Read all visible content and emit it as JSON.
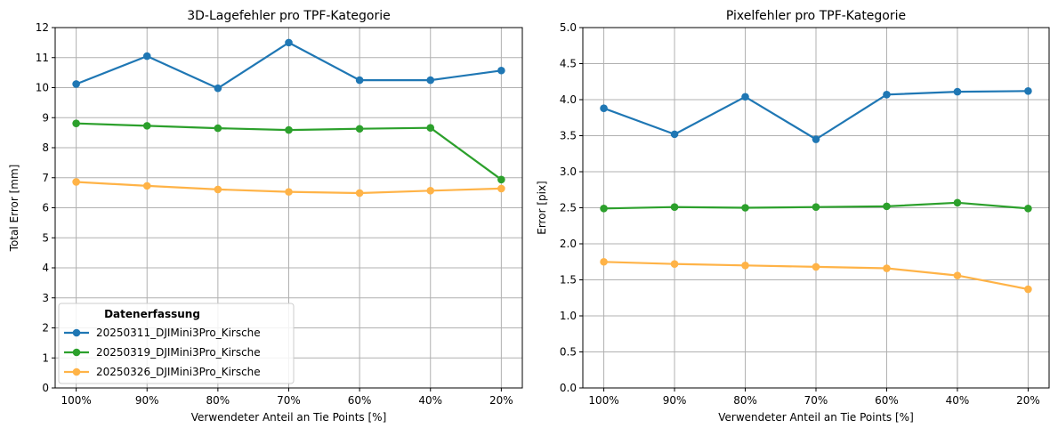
{
  "chart_data": [
    {
      "type": "line",
      "title": "3D-Lagefehler pro TPF-Kategorie",
      "xlabel": "Verwendeter Anteil an Tie Points [%]",
      "ylabel": "Total Error [mm]",
      "categories": [
        "100%",
        "90%",
        "80%",
        "70%",
        "60%",
        "40%",
        "20%"
      ],
      "ylim": [
        0,
        12
      ],
      "yticks": [
        "0",
        "1",
        "2",
        "3",
        "4",
        "5",
        "6",
        "7",
        "8",
        "9",
        "10",
        "11",
        "12"
      ],
      "grid": true,
      "legend": {
        "title": "Datenerfassung",
        "placement": "bottom-left"
      },
      "series": [
        {
          "name": "20250311_DJIMini3Pro_Kirsche",
          "color": "#1f77b4",
          "values": [
            10.12,
            11.05,
            9.98,
            11.5,
            10.25,
            10.25,
            10.57
          ]
        },
        {
          "name": "20250319_DJIMini3Pro_Kirsche",
          "color": "#2ca02c",
          "values": [
            8.81,
            8.73,
            8.65,
            8.59,
            8.63,
            8.66,
            6.94
          ]
        },
        {
          "name": "20250326_DJIMini3Pro_Kirsche",
          "color": "#ffb347",
          "values": [
            6.86,
            6.73,
            6.61,
            6.53,
            6.49,
            6.57,
            6.64
          ]
        }
      ]
    },
    {
      "type": "line",
      "title": "Pixelfehler pro TPF-Kategorie",
      "xlabel": "Verwendeter Anteil an Tie Points [%]",
      "ylabel": "Error [pix]",
      "categories": [
        "100%",
        "90%",
        "80%",
        "70%",
        "60%",
        "40%",
        "20%"
      ],
      "ylim": [
        0,
        5
      ],
      "yticks": [
        "0.0",
        "0.5",
        "1.0",
        "1.5",
        "2.0",
        "2.5",
        "3.0",
        "3.5",
        "4.0",
        "4.5",
        "5.0"
      ],
      "grid": true,
      "series": [
        {
          "color": "#1f77b4",
          "values": [
            3.88,
            3.52,
            4.04,
            3.45,
            4.07,
            4.11,
            4.12
          ]
        },
        {
          "color": "#2ca02c",
          "values": [
            2.49,
            2.51,
            2.5,
            2.51,
            2.52,
            2.57,
            2.49
          ]
        },
        {
          "color": "#ffb347",
          "values": [
            1.75,
            1.72,
            1.7,
            1.68,
            1.66,
            1.56,
            1.37
          ]
        }
      ]
    }
  ]
}
